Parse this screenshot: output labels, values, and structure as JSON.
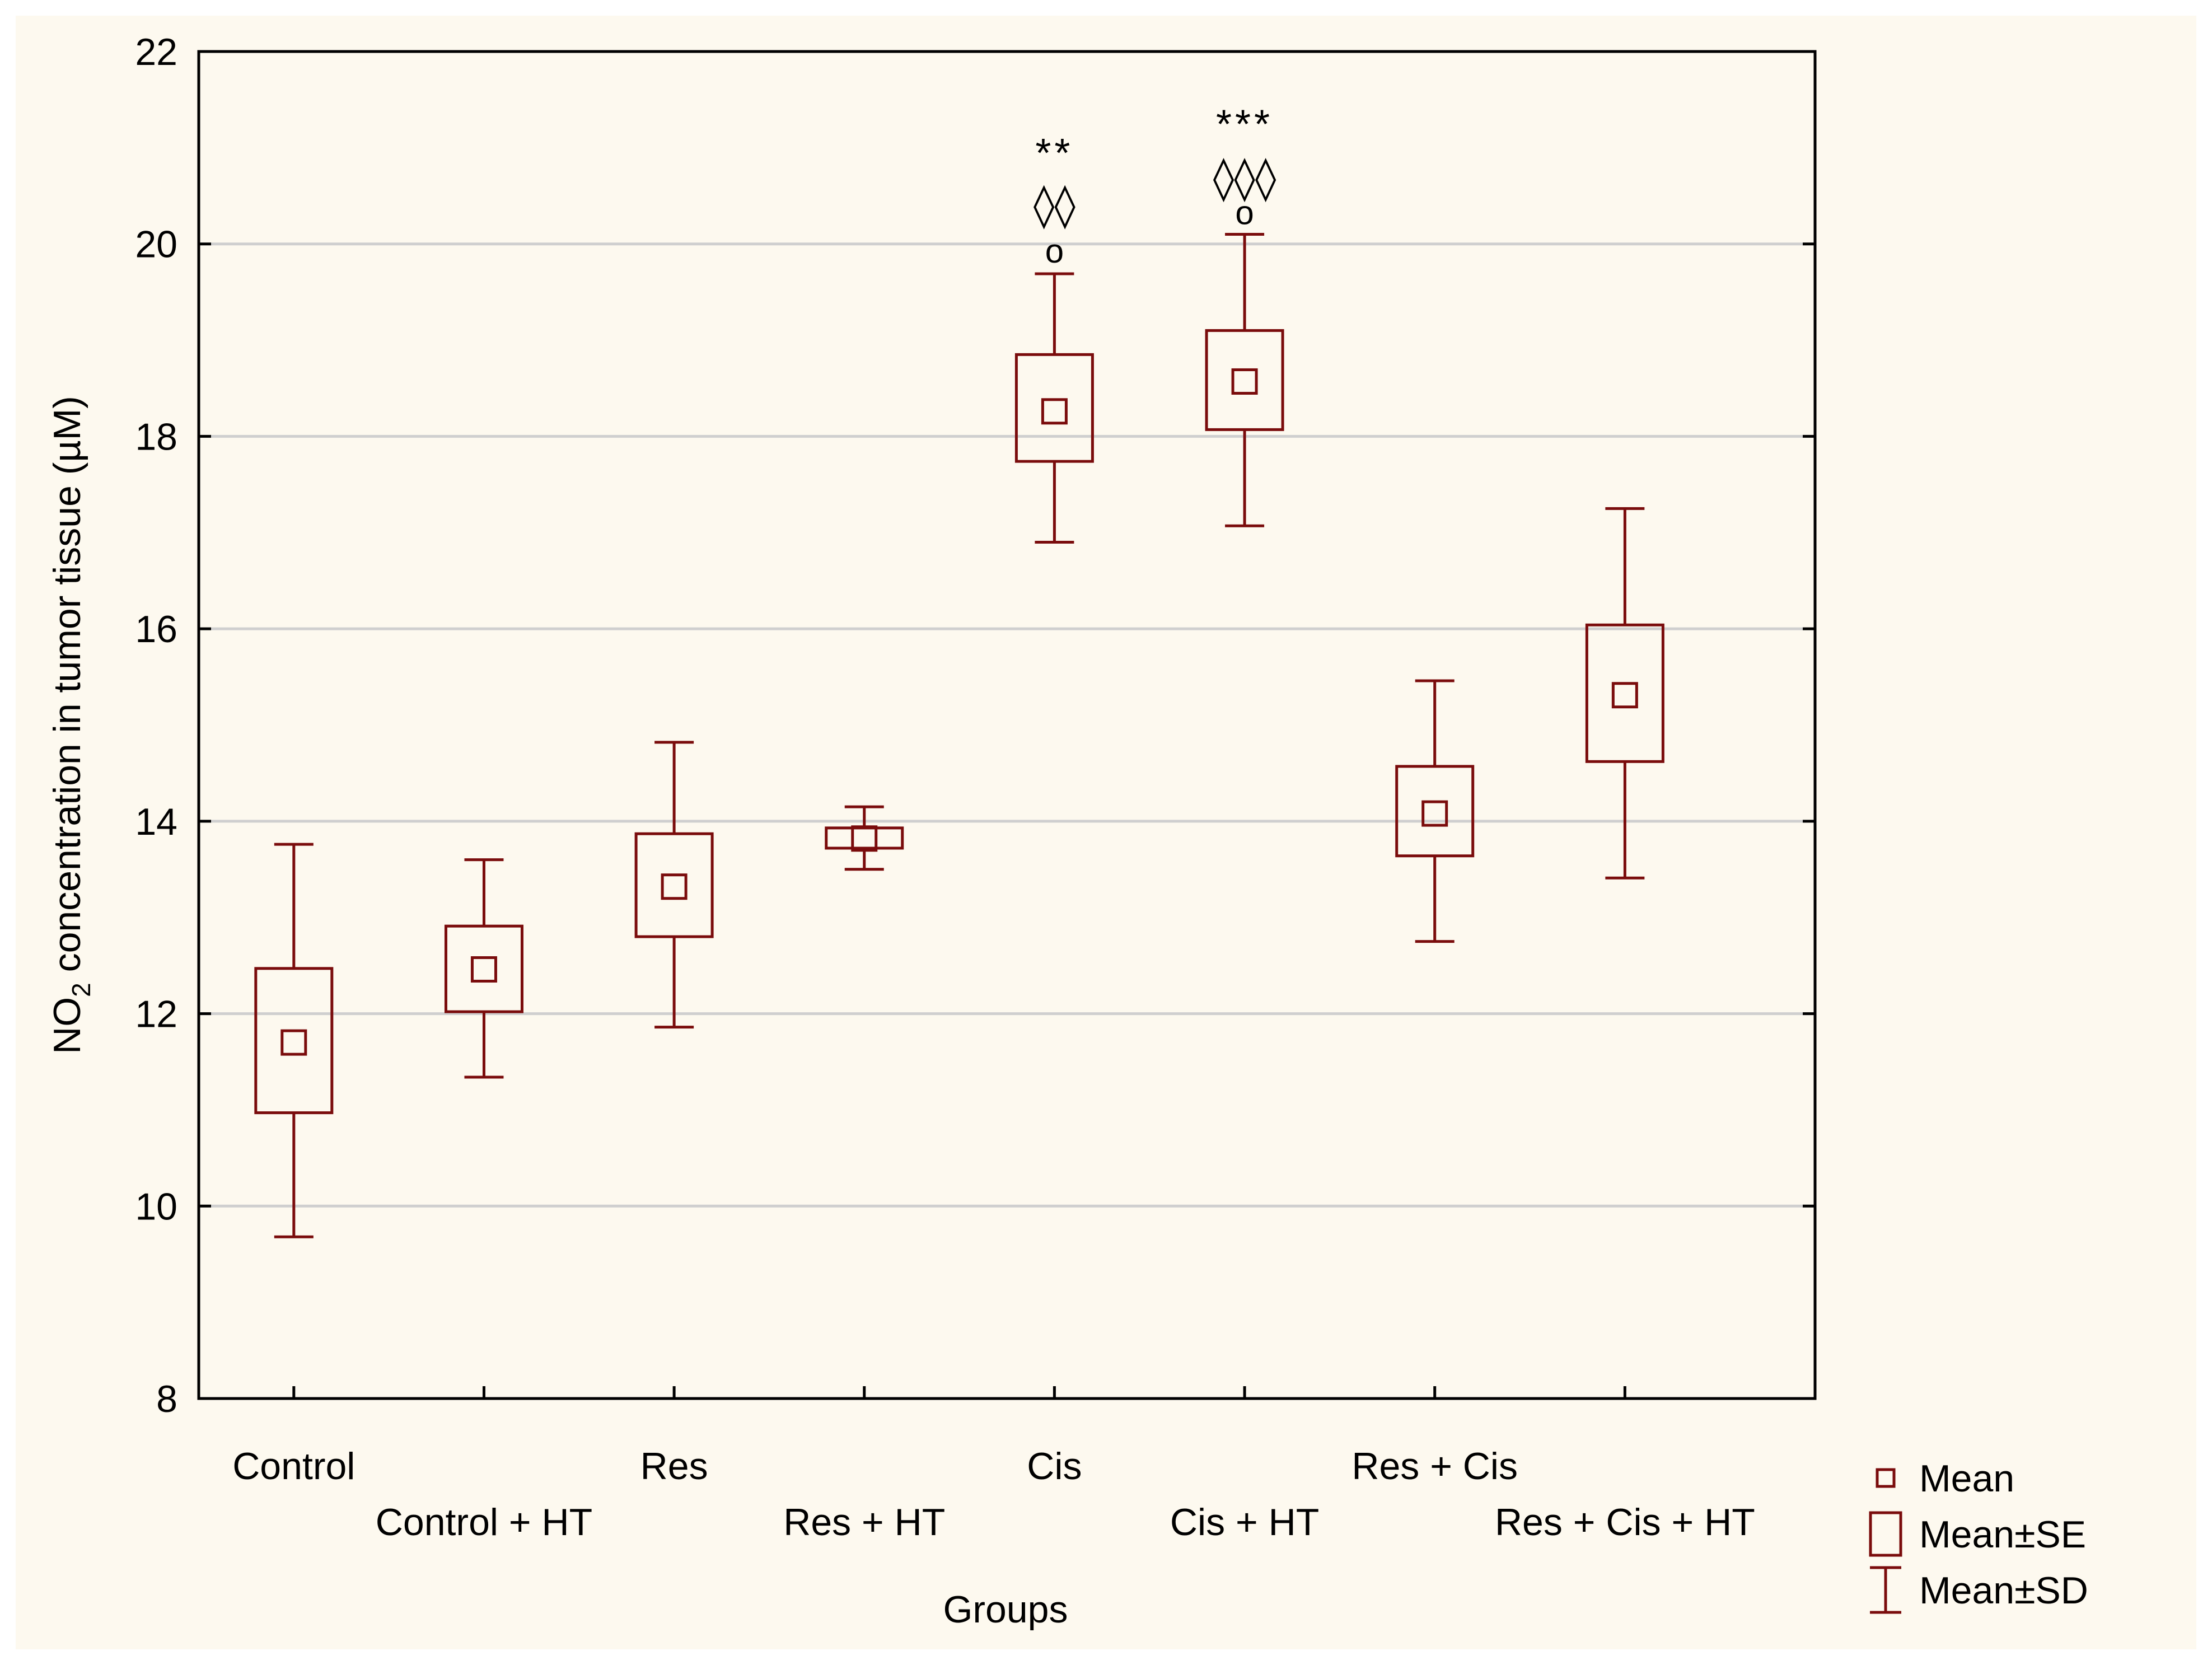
{
  "chart_data": {
    "type": "box",
    "xlabel": "Groups",
    "ylabel": {
      "prefix": "NO",
      "subscript": "2",
      "suffix": " concentration in tumor tissue (µM)"
    },
    "ylim": [
      8,
      22
    ],
    "yticks": [
      8,
      10,
      12,
      14,
      16,
      18,
      20,
      22
    ],
    "grid": true,
    "colors": {
      "series": "#7a0c0c",
      "grid": "#cfcfcf",
      "axis": "#000000",
      "background": "#fdf9ef"
    },
    "categories": [
      "Control",
      "Control + HT",
      "Res",
      "Res + HT",
      "Cis",
      "Cis + HT",
      "Res + Cis",
      "Res + Cis + HT"
    ],
    "groups": [
      {
        "name": "Control",
        "mean": 11.7,
        "se_low": 10.97,
        "se_high": 12.47,
        "sd_low": 9.68,
        "sd_high": 13.76
      },
      {
        "name": "Control + HT",
        "mean": 12.46,
        "se_low": 12.02,
        "se_high": 12.91,
        "sd_low": 11.34,
        "sd_high": 13.6
      },
      {
        "name": "Res",
        "mean": 13.32,
        "se_low": 12.8,
        "se_high": 13.87,
        "sd_low": 11.86,
        "sd_high": 14.82
      },
      {
        "name": "Res + HT",
        "mean": 13.82,
        "se_low": 13.72,
        "se_high": 13.93,
        "sd_low": 13.5,
        "sd_high": 14.15
      },
      {
        "name": "Cis",
        "mean": 18.26,
        "se_low": 17.74,
        "se_high": 18.85,
        "sd_low": 16.9,
        "sd_high": 19.69
      },
      {
        "name": "Cis + HT",
        "mean": 18.57,
        "se_low": 18.07,
        "se_high": 19.1,
        "sd_low": 17.07,
        "sd_high": 20.1
      },
      {
        "name": "Res + Cis",
        "mean": 14.08,
        "se_low": 13.64,
        "se_high": 14.57,
        "sd_low": 12.75,
        "sd_high": 15.46
      },
      {
        "name": "Res + Cis + HT",
        "mean": 15.31,
        "se_low": 14.62,
        "se_high": 16.04,
        "sd_low": 13.41,
        "sd_high": 17.25
      }
    ],
    "annotations": [
      {
        "group": "Cis",
        "circle": "o",
        "circle_y": 19.91,
        "diamonds": "◊◊",
        "diamonds_y": 20.43,
        "stars": "**",
        "stars_y": 21.0
      },
      {
        "group": "Cis + HT",
        "circle": "o",
        "circle_y": 20.31,
        "diamonds": "◊◊◊",
        "diamonds_y": 20.71,
        "stars": "***",
        "stars_y": 21.3
      }
    ],
    "legend": {
      "position": "bottom-right",
      "items": [
        {
          "symbol": "mean",
          "label": "Mean"
        },
        {
          "symbol": "se",
          "label": "Mean±SE"
        },
        {
          "symbol": "sd",
          "label": "Mean±SD"
        }
      ]
    }
  }
}
